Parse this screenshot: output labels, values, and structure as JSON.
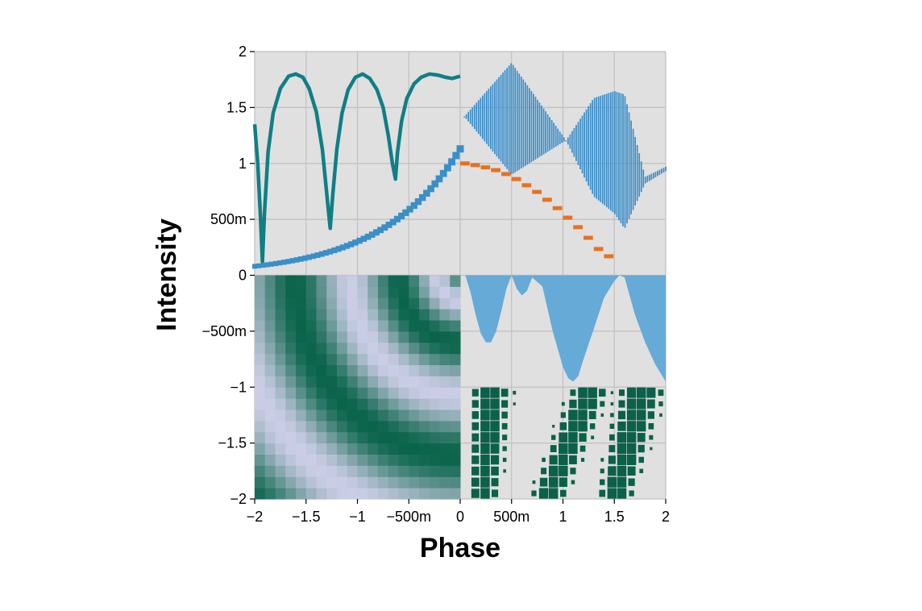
{
  "chart_data": {
    "type": "composite",
    "title": "",
    "xlabel": "Phase",
    "ylabel": "Intensity",
    "xlim": [
      -2,
      2
    ],
    "ylim": [
      -2,
      2
    ],
    "grid": true,
    "legend": "none",
    "x_ticks": [
      {
        "value": -2,
        "label": "−2"
      },
      {
        "value": -1.5,
        "label": "−1.5"
      },
      {
        "value": -1,
        "label": "−1"
      },
      {
        "value": -0.5,
        "label": "−500m"
      },
      {
        "value": 0,
        "label": "0"
      },
      {
        "value": 0.5,
        "label": "500m"
      },
      {
        "value": 1,
        "label": "1"
      },
      {
        "value": 1.5,
        "label": "1.5"
      },
      {
        "value": 2,
        "label": "2"
      }
    ],
    "y_ticks": [
      {
        "value": 2,
        "label": "2"
      },
      {
        "value": 1.5,
        "label": "1.5"
      },
      {
        "value": 1,
        "label": "1"
      },
      {
        "value": 0.5,
        "label": "500m"
      },
      {
        "value": 0,
        "label": "0"
      },
      {
        "value": -0.5,
        "label": "−500m"
      },
      {
        "value": -1,
        "label": "−1"
      },
      {
        "value": -1.5,
        "label": "−1.5"
      },
      {
        "value": -2,
        "label": "−2"
      }
    ],
    "colors": {
      "panel_background": "#e0e0e0",
      "grid": "#c0c0c0",
      "teal_line": "#0f7f85",
      "blue": "#3a8fc8",
      "blue_stripes": "#3d8fc9",
      "orange": "#e8711f",
      "area_blue": "#66aad7",
      "heatmap_dark": "#0a644a",
      "heatmap_light": "#cbcde6",
      "square_green": "#0b6049"
    },
    "panels": [
      {
        "kind": "line",
        "region": "top",
        "description_color": "teal_line",
        "points": [
          [
            -2,
            1.35
          ],
          [
            -1.97,
            1.0
          ],
          [
            -1.945,
            0.55
          ],
          [
            -1.925,
            0.12
          ],
          [
            -1.905,
            0.55
          ],
          [
            -1.87,
            1.1
          ],
          [
            -1.82,
            1.45
          ],
          [
            -1.75,
            1.67
          ],
          [
            -1.67,
            1.78
          ],
          [
            -1.6,
            1.8
          ],
          [
            -1.53,
            1.77
          ],
          [
            -1.47,
            1.67
          ],
          [
            -1.4,
            1.46
          ],
          [
            -1.34,
            1.12
          ],
          [
            -1.29,
            0.65
          ],
          [
            -1.265,
            0.42
          ],
          [
            -1.24,
            0.72
          ],
          [
            -1.2,
            1.13
          ],
          [
            -1.15,
            1.45
          ],
          [
            -1.09,
            1.66
          ],
          [
            -1.02,
            1.77
          ],
          [
            -0.95,
            1.8
          ],
          [
            -0.88,
            1.76
          ],
          [
            -0.81,
            1.66
          ],
          [
            -0.75,
            1.5
          ],
          [
            -0.7,
            1.25
          ],
          [
            -0.66,
            1.0
          ],
          [
            -0.63,
            0.86
          ],
          [
            -0.61,
            1.1
          ],
          [
            -0.57,
            1.38
          ],
          [
            -0.52,
            1.58
          ],
          [
            -0.45,
            1.71
          ],
          [
            -0.38,
            1.77
          ],
          [
            -0.3,
            1.8
          ],
          [
            -0.22,
            1.79
          ],
          [
            -0.14,
            1.77
          ],
          [
            -0.08,
            1.76
          ],
          [
            -0.04,
            1.77
          ],
          [
            0,
            1.78
          ]
        ]
      },
      {
        "kind": "marker-line",
        "region": "top-left",
        "description_color": "blue",
        "x_start": -2,
        "x_end": 0,
        "count": 50,
        "y_start": 0.08,
        "y_end": 1.13,
        "growth": 2.43
      },
      {
        "kind": "steps",
        "region": "top-right",
        "description_color": "orange",
        "points": [
          [
            0.05,
            1.0
          ],
          [
            0.15,
            0.985
          ],
          [
            0.25,
            0.965
          ],
          [
            0.35,
            0.94
          ],
          [
            0.45,
            0.905
          ],
          [
            0.55,
            0.86
          ],
          [
            0.65,
            0.805
          ],
          [
            0.75,
            0.745
          ],
          [
            0.85,
            0.675
          ],
          [
            0.95,
            0.6
          ],
          [
            1.05,
            0.515
          ],
          [
            1.15,
            0.43
          ],
          [
            1.25,
            0.335
          ],
          [
            1.35,
            0.235
          ],
          [
            1.45,
            0.17
          ]
        ],
        "step_width": 0.1
      },
      {
        "kind": "stripes",
        "region": "top-right",
        "description_color": "blue_stripes",
        "x_start": 0.04,
        "x_end": 2.0,
        "count": 100,
        "center": [
          [
            0.04,
            1.42
          ],
          [
            0.5,
            1.4
          ],
          [
            1.05,
            1.2
          ],
          [
            1.5,
            1.1
          ],
          [
            1.8,
            0.85
          ],
          [
            2.0,
            0.95
          ]
        ],
        "half_width": [
          [
            0.04,
            0.0
          ],
          [
            0.5,
            0.5
          ],
          [
            1.03,
            0.0
          ],
          [
            1.3,
            0.44
          ],
          [
            1.6,
            0.6
          ],
          [
            1.8,
            0.03
          ],
          [
            2.0,
            0.02
          ]
        ]
      },
      {
        "kind": "area",
        "region": "bottom-right-top",
        "description_color": "area_blue",
        "baseline": 0,
        "points": [
          [
            0.05,
            0
          ],
          [
            0.1,
            -0.15
          ],
          [
            0.15,
            -0.35
          ],
          [
            0.2,
            -0.52
          ],
          [
            0.25,
            -0.6
          ],
          [
            0.3,
            -0.6
          ],
          [
            0.35,
            -0.5
          ],
          [
            0.4,
            -0.32
          ],
          [
            0.45,
            -0.12
          ],
          [
            0.5,
            0
          ],
          [
            0.55,
            -0.12
          ],
          [
            0.6,
            -0.18
          ],
          [
            0.65,
            -0.14
          ],
          [
            0.7,
            -0.02
          ],
          [
            0.8,
            -0.1
          ],
          [
            0.9,
            -0.5
          ],
          [
            1.0,
            -0.82
          ],
          [
            1.05,
            -0.92
          ],
          [
            1.1,
            -0.95
          ],
          [
            1.15,
            -0.9
          ],
          [
            1.2,
            -0.75
          ],
          [
            1.3,
            -0.48
          ],
          [
            1.4,
            -0.2
          ],
          [
            1.5,
            -0.05
          ],
          [
            1.55,
            0
          ],
          [
            1.6,
            -0.02
          ],
          [
            1.7,
            -0.35
          ],
          [
            1.8,
            -0.6
          ],
          [
            1.9,
            -0.8
          ],
          [
            2.0,
            -0.95
          ]
        ]
      },
      {
        "kind": "heatmap",
        "region": "bottom-left",
        "x_range": [
          -2,
          0
        ],
        "y_range": [
          -2,
          0
        ],
        "cells": 20,
        "scale": [
          "heatmap_light",
          "heatmap_dark"
        ],
        "function": "0.5 + 0.5*cos(9*(x^2 + y^2)^0.35)"
      },
      {
        "kind": "sized-squares",
        "region": "bottom-right-bottom",
        "x_range": [
          0.1,
          2.0
        ],
        "y_range": [
          -2,
          -1
        ],
        "cells_x": 20,
        "cells_y": 10,
        "bands": [
          {
            "x_left": 0.1,
            "x_right_top": 0.5,
            "x_right_bottom": 0.35
          },
          {
            "x_left_top": 1.1,
            "x_left_bottom": 0.7,
            "x_right_top": 1.45,
            "x_right_bottom": 1.0
          },
          {
            "x_left_top": 1.55,
            "x_left_bottom": 1.35,
            "x_right_top": 2.0,
            "x_right_bottom": 1.65
          }
        ]
      }
    ]
  }
}
